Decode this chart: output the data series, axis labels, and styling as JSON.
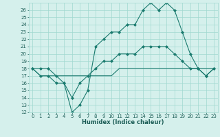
{
  "xlabel": "Humidex (Indice chaleur)",
  "x": [
    0,
    1,
    2,
    3,
    4,
    5,
    6,
    7,
    8,
    9,
    10,
    11,
    12,
    13,
    14,
    15,
    16,
    17,
    18,
    19,
    20,
    21,
    22,
    23
  ],
  "line1": [
    18,
    18,
    18,
    17,
    16,
    12,
    13,
    15,
    21,
    22,
    23,
    23,
    24,
    24,
    26,
    27,
    26,
    27,
    26,
    23,
    20,
    18,
    17,
    18
  ],
  "line2": [
    18,
    17,
    17,
    16,
    16,
    14,
    16,
    17,
    18,
    19,
    19,
    20,
    20,
    20,
    21,
    21,
    21,
    21,
    20,
    19,
    18,
    18,
    17,
    18
  ],
  "line3": [
    18,
    17,
    17,
    17,
    17,
    17,
    17,
    17,
    17,
    17,
    17,
    18,
    18,
    18,
    18,
    18,
    18,
    18,
    18,
    18,
    18,
    18,
    18,
    18
  ],
  "line_color": "#1a7a6e",
  "bg_color": "#d5f0ec",
  "grid_color": "#a0d8d0",
  "text_color": "#1a5c55",
  "ylim": [
    12,
    27
  ],
  "xlim": [
    -0.5,
    23.5
  ],
  "yticks": [
    12,
    13,
    14,
    15,
    16,
    17,
    18,
    19,
    20,
    21,
    22,
    23,
    24,
    25,
    26
  ],
  "xticks": [
    0,
    1,
    2,
    3,
    4,
    5,
    6,
    7,
    8,
    9,
    10,
    11,
    12,
    13,
    14,
    15,
    16,
    17,
    18,
    19,
    20,
    21,
    22,
    23
  ],
  "marker": "D",
  "markersize": 2,
  "linewidth": 0.8,
  "tick_fontsize": 5,
  "xlabel_fontsize": 6
}
